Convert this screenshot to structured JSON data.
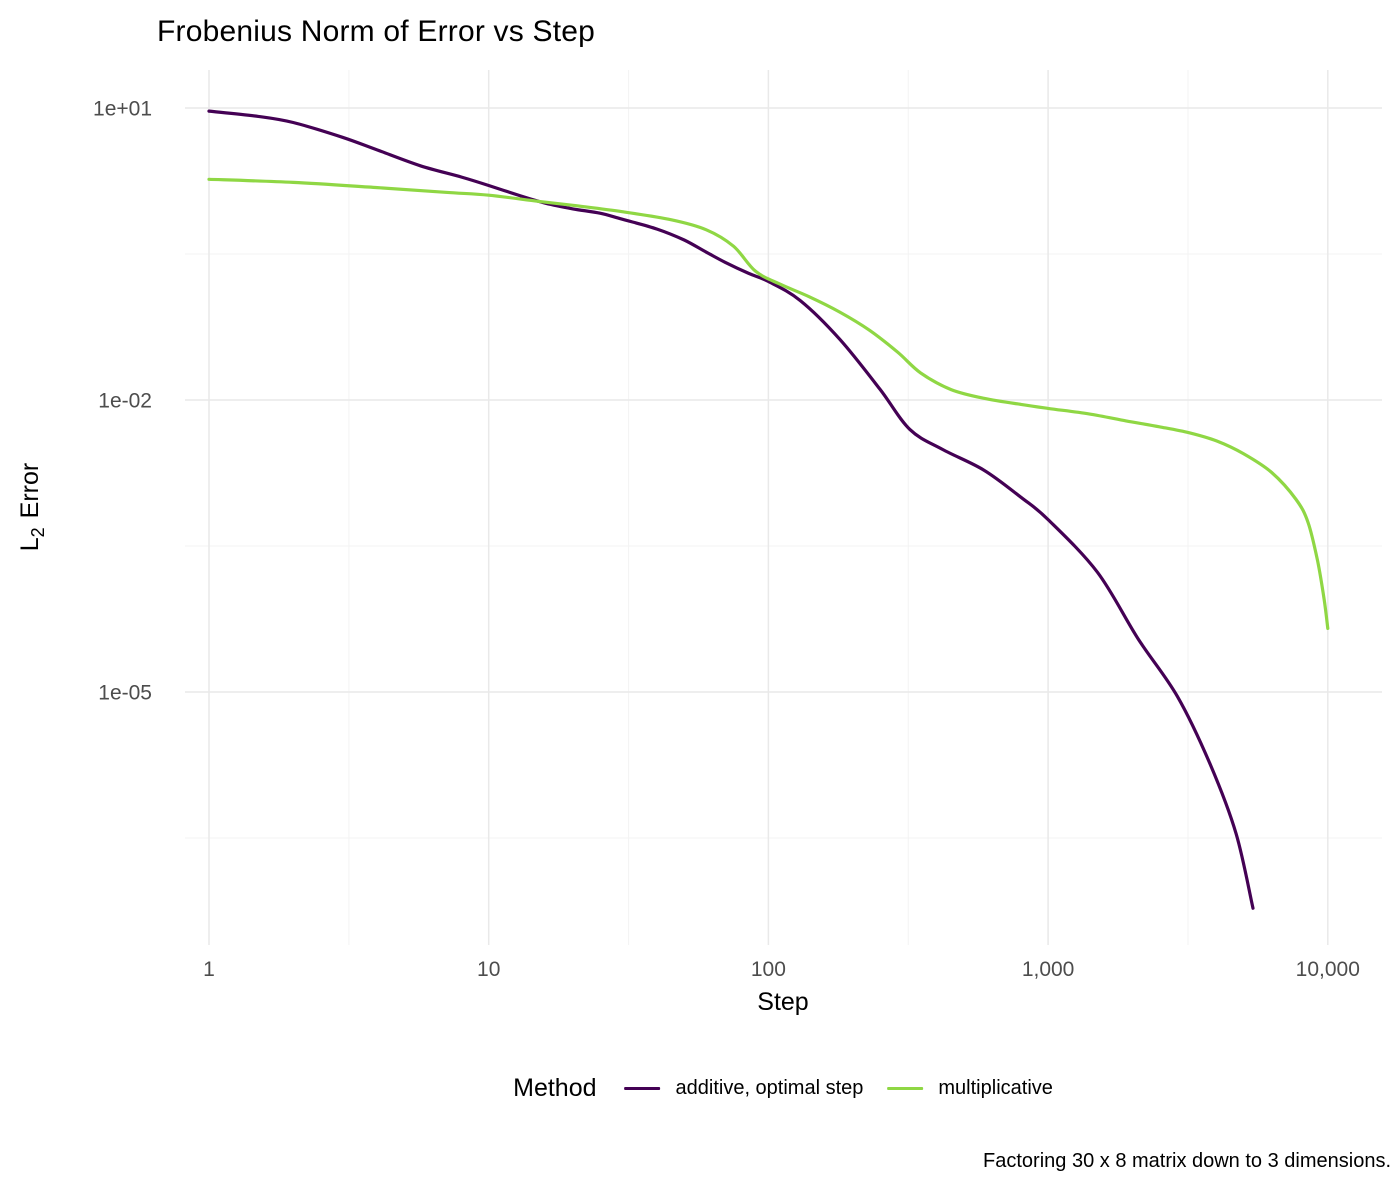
{
  "page": {
    "title": "Frobenius Norm of Error vs Step",
    "caption": "Factoring 30 x 8 matrix down to 3 dimensions."
  },
  "legend": {
    "title": "Method",
    "items": [
      {
        "label": "additive, optimal step",
        "color": "#440154"
      },
      {
        "label": "multiplicative",
        "color": "#8fd744"
      }
    ]
  },
  "chart_data": {
    "type": "line",
    "title": "Frobenius Norm of Error vs Step",
    "xlabel": "Step",
    "ylabel": "L2 Error",
    "ylabel_parts": {
      "main": "L",
      "sub": "2",
      "rest": "Error"
    },
    "x_scale": "log10",
    "y_scale": "log10",
    "xlim": [
      0.82,
      15600
    ],
    "ylim": [
      2.5e-08,
      25
    ],
    "grid": true,
    "legend_position": "bottom",
    "colors": {
      "grid_major": "#e9e9e9",
      "grid_minor": "#f3f3f3",
      "tick_text": "#4d4d4d",
      "axis_title": "#000000"
    },
    "x_ticks": [
      {
        "label": "1",
        "value": 1
      },
      {
        "label": "10",
        "value": 10
      },
      {
        "label": "100",
        "value": 100
      },
      {
        "label": "1,000",
        "value": 1000
      },
      {
        "label": "10,000",
        "value": 10000
      }
    ],
    "y_ticks": [
      {
        "label": "1e+01",
        "value": 10
      },
      {
        "label": "1e-02",
        "value": 0.01
      },
      {
        "label": "1e-05",
        "value": 1e-05
      }
    ],
    "x_minor": [
      3.1623,
      31.623,
      316.23,
      3162.3
    ],
    "y_minor": [
      0.31623,
      0.00031623,
      3.1623e-07
    ],
    "series": [
      {
        "name": "additive, optimal step",
        "color": "#440154",
        "points": [
          [
            1,
            9.3
          ],
          [
            1.5,
            8.2
          ],
          [
            2,
            7.1
          ],
          [
            3,
            5.0
          ],
          [
            4,
            3.7
          ],
          [
            5.7,
            2.55
          ],
          [
            8,
            1.95
          ],
          [
            10,
            1.6
          ],
          [
            13,
            1.25
          ],
          [
            16,
            1.05
          ],
          [
            20,
            0.92
          ],
          [
            25,
            0.83
          ],
          [
            30,
            0.72
          ],
          [
            40,
            0.57
          ],
          [
            50,
            0.44
          ],
          [
            60,
            0.33
          ],
          [
            70,
            0.26
          ],
          [
            85,
            0.2
          ],
          [
            100,
            0.165
          ],
          [
            130,
            0.105
          ],
          [
            180,
            0.042
          ],
          [
            250,
            0.013
          ],
          [
            320,
            0.005
          ],
          [
            420,
            0.0031
          ],
          [
            590,
            0.0019
          ],
          [
            800,
            0.001
          ],
          [
            1000,
            0.00059
          ],
          [
            1500,
            0.00017
          ],
          [
            2100,
            3.5e-05
          ],
          [
            2900,
            9e-06
          ],
          [
            3800,
            1.8e-06
          ],
          [
            4700,
            3.5e-07
          ],
          [
            5400,
            6e-08
          ]
        ]
      },
      {
        "name": "multiplicative",
        "color": "#8fd744",
        "points": [
          [
            1,
            1.85
          ],
          [
            2,
            1.72
          ],
          [
            4,
            1.52
          ],
          [
            7,
            1.36
          ],
          [
            10,
            1.27
          ],
          [
            15,
            1.1
          ],
          [
            20,
            1.0
          ],
          [
            30,
            0.86
          ],
          [
            45,
            0.71
          ],
          [
            60,
            0.56
          ],
          [
            75,
            0.38
          ],
          [
            90,
            0.21
          ],
          [
            110,
            0.155
          ],
          [
            140,
            0.115
          ],
          [
            180,
            0.08
          ],
          [
            230,
            0.052
          ],
          [
            290,
            0.031
          ],
          [
            350,
            0.019
          ],
          [
            450,
            0.0128
          ],
          [
            590,
            0.0104
          ],
          [
            800,
            0.009
          ],
          [
            1000,
            0.0082
          ],
          [
            1400,
            0.0072
          ],
          [
            1900,
            0.0061
          ],
          [
            2500,
            0.0053
          ],
          [
            3200,
            0.0046
          ],
          [
            4000,
            0.0038
          ],
          [
            5000,
            0.0028
          ],
          [
            6300,
            0.0018
          ],
          [
            7700,
            0.00095
          ],
          [
            8500,
            0.00055
          ],
          [
            9200,
            0.00022
          ],
          [
            9700,
            9e-05
          ],
          [
            10000,
            4.5e-05
          ]
        ]
      }
    ]
  }
}
